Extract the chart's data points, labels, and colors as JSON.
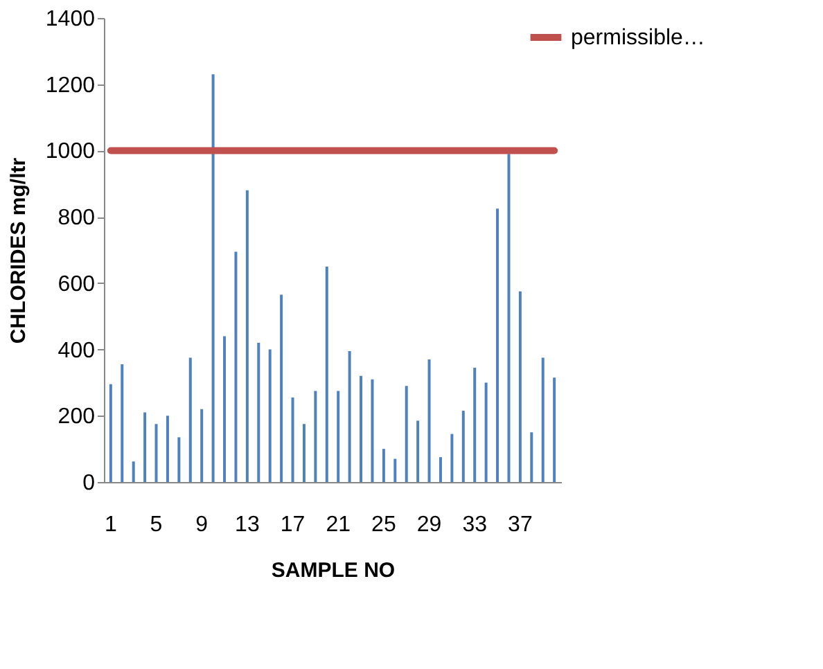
{
  "chart_data": {
    "type": "bar",
    "xlabel": "SAMPLE NO",
    "ylabel": "CHLORIDES mg/ltr",
    "categories": [
      "1",
      null,
      null,
      null,
      "5",
      null,
      null,
      null,
      "9",
      null,
      null,
      null,
      "13",
      null,
      null,
      null,
      "17",
      null,
      null,
      null,
      "21",
      null,
      null,
      null,
      "25",
      null,
      null,
      null,
      "29",
      null,
      null,
      null,
      "33",
      null,
      null,
      null,
      "37",
      null,
      null,
      null
    ],
    "series": [
      {
        "color": "#4f81bd",
        "values": [
          295,
          355,
          62,
          210,
          175,
          200,
          135,
          375,
          220,
          1230,
          440,
          695,
          880,
          420,
          400,
          565,
          255,
          175,
          275,
          650,
          275,
          395,
          320,
          310,
          100,
          70,
          290,
          185,
          370,
          75,
          145,
          215,
          345,
          300,
          825,
          990,
          575,
          150,
          375,
          315
        ]
      },
      {
        "type": "line",
        "name": "permissible…",
        "color": "#c0504d",
        "values": [
          1000,
          1000,
          1000,
          1000,
          1000,
          1000,
          1000,
          1000,
          1000,
          1000,
          1000,
          1000,
          1000,
          1000,
          1000,
          1000,
          1000,
          1000,
          1000,
          1000,
          1000,
          1000,
          1000,
          1000,
          1000,
          1000,
          1000,
          1000,
          1000,
          1000,
          1000,
          1000,
          1000,
          1000,
          1000,
          1000,
          1000,
          1000,
          1000,
          1000
        ]
      }
    ],
    "ylim": [
      0,
      1400
    ],
    "yticks": [
      0,
      200,
      400,
      600,
      800,
      1000,
      1200,
      1400
    ],
    "grid": false,
    "legend": "top right"
  }
}
